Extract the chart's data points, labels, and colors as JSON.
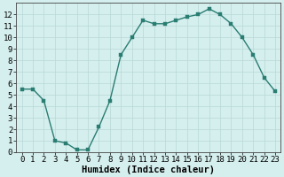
{
  "x": [
    0,
    1,
    2,
    3,
    4,
    5,
    6,
    7,
    8,
    9,
    10,
    11,
    12,
    13,
    14,
    15,
    16,
    17,
    18,
    19,
    20,
    21,
    22,
    23
  ],
  "y": [
    5.5,
    5.5,
    4.5,
    1.0,
    0.8,
    0.2,
    0.2,
    2.2,
    4.5,
    8.5,
    10.0,
    11.5,
    11.2,
    11.2,
    11.5,
    11.8,
    12.0,
    12.5,
    12.0,
    11.2,
    10.0,
    8.5,
    6.5,
    5.3
  ],
  "line_color": "#2a7d72",
  "marker_color": "#2a7d72",
  "bg_color": "#d5efee",
  "grid_color": "#b8d8d5",
  "xlabel": "Humidex (Indice chaleur)",
  "ylim": [
    0,
    13
  ],
  "xlim": [
    -0.5,
    23.5
  ],
  "yticks": [
    0,
    1,
    2,
    3,
    4,
    5,
    6,
    7,
    8,
    9,
    10,
    11,
    12
  ],
  "xticks": [
    0,
    1,
    2,
    3,
    4,
    5,
    6,
    7,
    8,
    9,
    10,
    11,
    12,
    13,
    14,
    15,
    16,
    17,
    18,
    19,
    20,
    21,
    22,
    23
  ],
  "xlabel_fontsize": 7.5,
  "tick_fontsize": 6.5,
  "line_width": 1.0,
  "marker_size": 2.2
}
